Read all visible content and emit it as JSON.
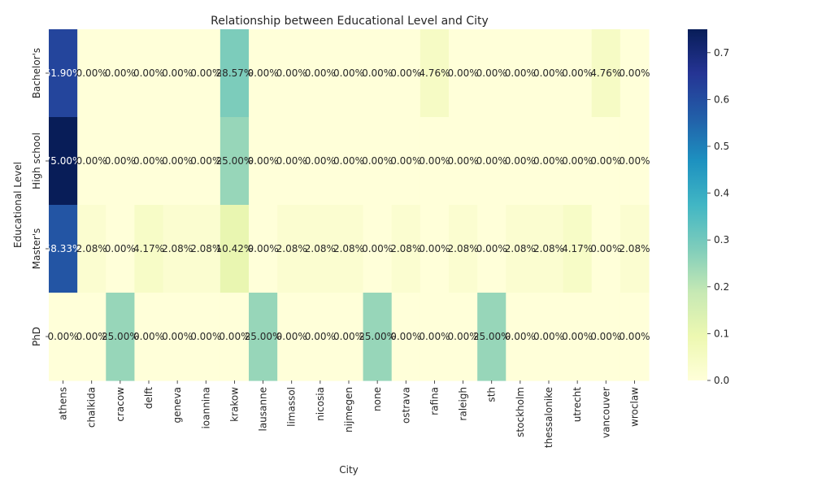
{
  "chart_data": {
    "type": "heatmap",
    "title": "Relationship between Educational Level and City",
    "xlabel": "City",
    "ylabel": "Educational Level",
    "colormap": "YlGnBu",
    "colorbar": {
      "min": 0.0,
      "max": 0.75,
      "ticks": [
        "0.0",
        "0.1",
        "0.2",
        "0.3",
        "0.4",
        "0.5",
        "0.6",
        "0.7"
      ]
    },
    "categories": [
      "athens",
      "chalkida",
      "cracow",
      "delft",
      "geneva",
      "ioannina",
      "krakow",
      "lausanne",
      "limassol",
      "nicosia",
      "nijmegen",
      "none",
      "ostrava",
      "rafina",
      "raleigh",
      "sth",
      "stockholm",
      "thessalonike",
      "utrecht",
      "vancouver",
      "wroclaw"
    ],
    "rows": [
      "Bachelor's",
      "High school",
      "Master's",
      "PhD"
    ],
    "values": [
      [
        0.619,
        0.0,
        0.0,
        0.0,
        0.0,
        0.0,
        0.2857,
        0.0,
        0.0,
        0.0,
        0.0,
        0.0,
        0.0,
        0.0476,
        0.0,
        0.0,
        0.0,
        0.0,
        0.0,
        0.0476,
        0.0
      ],
      [
        0.75,
        0.0,
        0.0,
        0.0,
        0.0,
        0.0,
        0.25,
        0.0,
        0.0,
        0.0,
        0.0,
        0.0,
        0.0,
        0.0,
        0.0,
        0.0,
        0.0,
        0.0,
        0.0,
        0.0,
        0.0
      ],
      [
        0.5833,
        0.0208,
        0.0,
        0.0417,
        0.0208,
        0.0208,
        0.1042,
        0.0,
        0.0208,
        0.0208,
        0.0208,
        0.0,
        0.0208,
        0.0,
        0.0208,
        0.0,
        0.0208,
        0.0208,
        0.0417,
        0.0,
        0.0208
      ],
      [
        0.0,
        0.0,
        0.25,
        0.0,
        0.0,
        0.0,
        0.0,
        0.25,
        0.0,
        0.0,
        0.0,
        0.25,
        0.0,
        0.0,
        0.0,
        0.25,
        0.0,
        0.0,
        0.0,
        0.0,
        0.0
      ]
    ],
    "labels": [
      [
        "61.90%",
        "0.00%",
        "0.00%",
        "0.00%",
        "0.00%",
        "0.00%",
        "28.57%",
        "0.00%",
        "0.00%",
        "0.00%",
        "0.00%",
        "0.00%",
        "0.00%",
        "4.76%",
        "0.00%",
        "0.00%",
        "0.00%",
        "0.00%",
        "0.00%",
        "4.76%",
        "0.00%"
      ],
      [
        "75.00%",
        "0.00%",
        "0.00%",
        "0.00%",
        "0.00%",
        "0.00%",
        "25.00%",
        "0.00%",
        "0.00%",
        "0.00%",
        "0.00%",
        "0.00%",
        "0.00%",
        "0.00%",
        "0.00%",
        "0.00%",
        "0.00%",
        "0.00%",
        "0.00%",
        "0.00%",
        "0.00%"
      ],
      [
        "58.33%",
        "2.08%",
        "0.00%",
        "4.17%",
        "2.08%",
        "2.08%",
        "10.42%",
        "0.00%",
        "2.08%",
        "2.08%",
        "2.08%",
        "0.00%",
        "2.08%",
        "0.00%",
        "2.08%",
        "0.00%",
        "2.08%",
        "2.08%",
        "4.17%",
        "0.00%",
        "2.08%"
      ],
      [
        "0.00%",
        "0.00%",
        "25.00%",
        "0.00%",
        "0.00%",
        "0.00%",
        "0.00%",
        "25.00%",
        "0.00%",
        "0.00%",
        "0.00%",
        "25.00%",
        "0.00%",
        "0.00%",
        "0.00%",
        "25.00%",
        "0.00%",
        "0.00%",
        "0.00%",
        "0.00%",
        "0.00%"
      ]
    ]
  }
}
